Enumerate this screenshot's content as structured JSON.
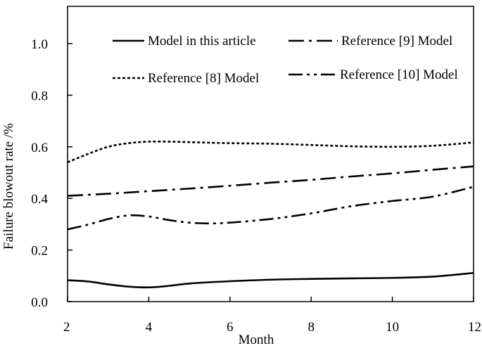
{
  "chart_data": {
    "type": "line",
    "title": "",
    "xlabel": "Month",
    "ylabel": "Failure blowout rate /%",
    "xlim": [
      2,
      12
    ],
    "ylim": [
      0.0,
      1.2
    ],
    "x_ticks": [
      "2",
      "4",
      "6",
      "8",
      "10",
      "12"
    ],
    "y_ticks": [
      "0.0",
      "0.2",
      "0.4",
      "0.6",
      "0.8",
      "1.0"
    ],
    "grid": false,
    "legend_position": "top",
    "series": [
      {
        "name": "Model in this article",
        "style": "solid",
        "x": [
          2,
          2.5,
          3,
          3.5,
          4,
          4.5,
          5,
          6,
          7,
          8,
          9,
          10,
          11,
          12
        ],
        "y": [
          0.083,
          0.078,
          0.067,
          0.058,
          0.055,
          0.061,
          0.07,
          0.079,
          0.085,
          0.088,
          0.09,
          0.092,
          0.097,
          0.111
        ]
      },
      {
        "name": "Reference [9] Model",
        "style": "dashdot",
        "x": [
          2,
          3,
          4,
          5,
          6,
          7,
          8,
          9,
          10,
          11,
          12
        ],
        "y": [
          0.41,
          0.418,
          0.428,
          0.438,
          0.449,
          0.461,
          0.472,
          0.485,
          0.497,
          0.511,
          0.524
        ]
      },
      {
        "name": "Reference [8] Model",
        "style": "dotted",
        "x": [
          2,
          2.5,
          3,
          3.5,
          4,
          4.5,
          5,
          6,
          7,
          8,
          9,
          10,
          11,
          12
        ],
        "y": [
          0.54,
          0.572,
          0.6,
          0.614,
          0.62,
          0.62,
          0.618,
          0.614,
          0.612,
          0.607,
          0.602,
          0.6,
          0.604,
          0.617
        ]
      },
      {
        "name": "Reference [10] Model",
        "style": "dashdotdot",
        "x": [
          2,
          2.5,
          3,
          3.5,
          4,
          4.5,
          5,
          5.5,
          6,
          7,
          8,
          9,
          10,
          11,
          12
        ],
        "y": [
          0.28,
          0.298,
          0.32,
          0.334,
          0.33,
          0.316,
          0.306,
          0.303,
          0.306,
          0.32,
          0.342,
          0.37,
          0.39,
          0.407,
          0.445
        ]
      }
    ]
  }
}
